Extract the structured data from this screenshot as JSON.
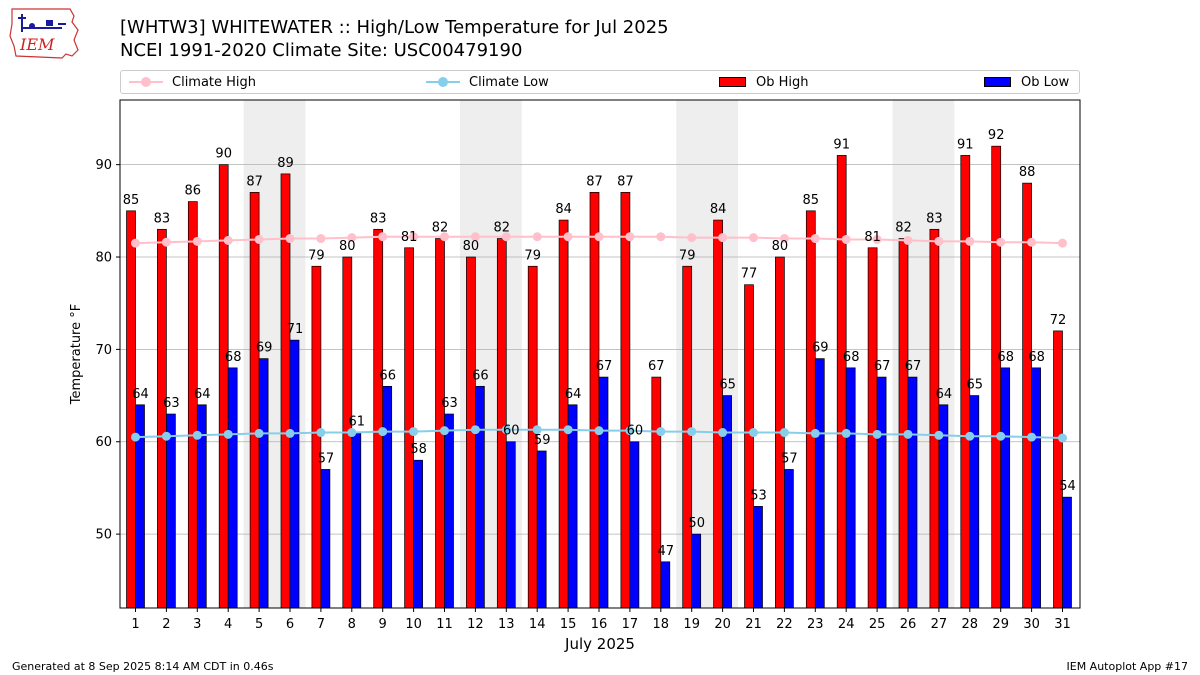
{
  "header": {
    "title_line1": "[WHTW3] WHITEWATER :: High/Low Temperature for Jul 2025",
    "title_line2": "NCEI 1991-2020 Climate Site: USC00479190",
    "logo_text": "IEM"
  },
  "legend": {
    "climate_high": "Climate High",
    "climate_low": "Climate Low",
    "ob_high": "Ob High",
    "ob_low": "Ob Low"
  },
  "colors": {
    "ob_high": "#ff0000",
    "ob_low": "#0000ff",
    "climate_high": "#ffc0cb",
    "climate_low": "#87ceeb",
    "weekend_shade": "#eeeeee",
    "grid": "#b0b0b0"
  },
  "footer": {
    "left": "Generated at 8 Sep 2025 8:14 AM CDT in 0.46s",
    "right": "IEM Autoplot App #17"
  },
  "chart_data": {
    "type": "bar",
    "xlabel": "July 2025",
    "ylabel": "Temperature °F",
    "ylim": [
      42,
      97
    ],
    "yticks": [
      50,
      60,
      70,
      80,
      90
    ],
    "grid": "horizontal",
    "legend_position": "top",
    "categories": [
      "1",
      "2",
      "3",
      "4",
      "5",
      "6",
      "7",
      "8",
      "9",
      "10",
      "11",
      "12",
      "13",
      "14",
      "15",
      "16",
      "17",
      "18",
      "19",
      "20",
      "21",
      "22",
      "23",
      "24",
      "25",
      "26",
      "27",
      "28",
      "29",
      "30",
      "31"
    ],
    "shaded_weeks": [
      [
        5,
        6
      ],
      [
        12,
        13
      ],
      [
        19,
        20
      ],
      [
        26,
        27
      ]
    ],
    "series": [
      {
        "name": "Ob High",
        "kind": "bar",
        "values": [
          85,
          83,
          86,
          90,
          87,
          89,
          79,
          80,
          83,
          81,
          82,
          80,
          82,
          79,
          84,
          87,
          87,
          67,
          79,
          84,
          77,
          80,
          85,
          91,
          81,
          82,
          83,
          91,
          92,
          88,
          72
        ]
      },
      {
        "name": "Ob Low",
        "kind": "bar",
        "values": [
          64,
          63,
          64,
          68,
          69,
          71,
          57,
          61,
          66,
          58,
          63,
          66,
          60,
          59,
          64,
          67,
          60,
          47,
          50,
          65,
          53,
          57,
          69,
          68,
          67,
          67,
          64,
          65,
          68,
          68,
          54
        ]
      },
      {
        "name": "Climate High",
        "kind": "line",
        "values": [
          81.5,
          81.6,
          81.7,
          81.8,
          81.9,
          82.0,
          82.0,
          82.1,
          82.2,
          82.2,
          82.2,
          82.2,
          82.2,
          82.2,
          82.2,
          82.2,
          82.2,
          82.2,
          82.1,
          82.1,
          82.1,
          82.0,
          82.0,
          81.9,
          81.9,
          81.8,
          81.7,
          81.7,
          81.6,
          81.6,
          81.5
        ]
      },
      {
        "name": "Climate Low",
        "kind": "line",
        "values": [
          60.5,
          60.6,
          60.7,
          60.8,
          60.9,
          60.9,
          61.0,
          61.0,
          61.1,
          61.1,
          61.2,
          61.3,
          61.3,
          61.3,
          61.3,
          61.2,
          61.2,
          61.1,
          61.1,
          61.0,
          61.0,
          61.0,
          60.9,
          60.9,
          60.8,
          60.8,
          60.7,
          60.6,
          60.6,
          60.5,
          60.4
        ]
      }
    ]
  }
}
